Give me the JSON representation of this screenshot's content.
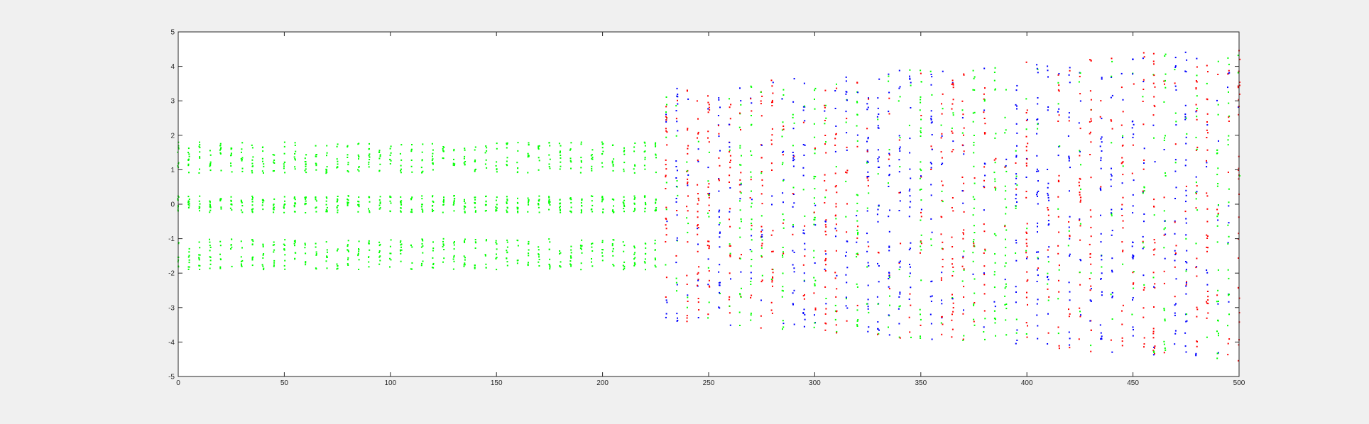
{
  "chart_data": {
    "type": "scatter",
    "title": "",
    "xlabel": "",
    "ylabel": "",
    "xlim": [
      0,
      500
    ],
    "ylim": [
      -5,
      5
    ],
    "grid": false,
    "legend": "none",
    "xticks": [
      0,
      50,
      100,
      150,
      200,
      250,
      300,
      350,
      400,
      450,
      500
    ],
    "yticks": [
      -5,
      -4,
      -3,
      -2,
      -1,
      0,
      1,
      2,
      3,
      4,
      5
    ],
    "xtick_labels": [
      "0",
      "50",
      "100",
      "150",
      "200",
      "250",
      "300",
      "350",
      "400",
      "450",
      "500"
    ],
    "ytick_labels": [
      "-5",
      "-4",
      "-3",
      "-2",
      "-1",
      "0",
      "1",
      "2",
      "3",
      "4",
      "5"
    ],
    "column_step": 5,
    "points_per_column": 32,
    "chaos_start_x": 230,
    "stable_band_means": [
      1.35,
      0.0,
      -1.45
    ],
    "stable_band_half_width": 0.45,
    "chaotic_y_range_at_start": [
      -3.4,
      3.4
    ],
    "chaotic_y_range_at_end": [
      -4.6,
      4.6
    ],
    "series_colors": {
      "green": "#00ff00",
      "red": "#ff0000",
      "blue": "#0000ff"
    },
    "colors": {
      "figure_bg": "#f0f0f0",
      "axes_bg": "#ffffff",
      "axis_line": "#262626",
      "tick_text": "#262626"
    }
  }
}
